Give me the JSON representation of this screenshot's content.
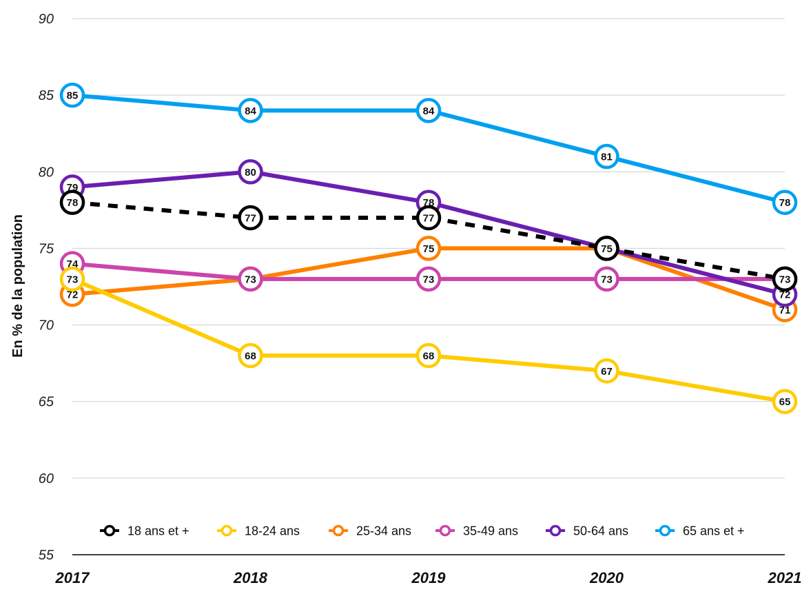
{
  "chart_data": {
    "type": "line",
    "title": "",
    "ylabel": "En % de la population",
    "xlabel": "",
    "x": [
      "2017",
      "2018",
      "2019",
      "2020",
      "2021"
    ],
    "ylim": [
      55,
      90
    ],
    "yticks": [
      55,
      60,
      65,
      70,
      75,
      80,
      85,
      90
    ],
    "grid": true,
    "legend_position": "bottom",
    "series": [
      {
        "name": "18 ans et +",
        "color": "#000000",
        "dashed": true,
        "values": [
          78,
          77,
          77,
          75,
          73
        ]
      },
      {
        "name": "18-24 ans",
        "color": "#FFCC00",
        "dashed": false,
        "values": [
          73,
          68,
          68,
          67,
          65
        ]
      },
      {
        "name": "25-34 ans",
        "color": "#FF8000",
        "dashed": false,
        "values": [
          72,
          73,
          75,
          75,
          71
        ]
      },
      {
        "name": "35-49 ans",
        "color": "#CC44AA",
        "dashed": false,
        "values": [
          74,
          73,
          73,
          73,
          73
        ]
      },
      {
        "name": "50-64 ans",
        "color": "#6A1FB0",
        "dashed": false,
        "values": [
          79,
          80,
          78,
          75,
          72
        ]
      },
      {
        "name": "65 ans et +",
        "color": "#00A0F0",
        "dashed": false,
        "values": [
          85,
          84,
          84,
          81,
          78
        ]
      }
    ],
    "draw_order": [
      2,
      3,
      1,
      4,
      5,
      0
    ]
  }
}
